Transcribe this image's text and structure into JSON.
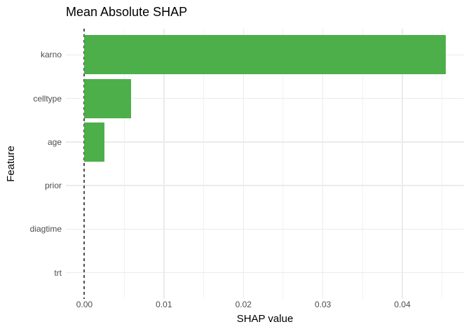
{
  "chart_data": {
    "type": "bar",
    "orientation": "horizontal",
    "title": "Mean Absolute SHAP",
    "xlabel": "SHAP value",
    "ylabel": "Feature",
    "categories": [
      "karno",
      "celltype",
      "age",
      "prior",
      "diagtime",
      "trt"
    ],
    "values": [
      0.0455,
      0.0059,
      0.0025,
      0,
      0,
      0
    ],
    "x_ticks": [
      {
        "value": 0.0,
        "label": "0.00"
      },
      {
        "value": 0.01,
        "label": "0.01"
      },
      {
        "value": 0.02,
        "label": "0.02"
      },
      {
        "value": 0.03,
        "label": "0.03"
      },
      {
        "value": 0.04,
        "label": "0.04"
      }
    ],
    "x_minor_ticks": [
      0.005,
      0.015,
      0.025,
      0.035,
      0.045
    ],
    "xlim": [
      -0.00233,
      0.04775
    ],
    "bar_fill_ratio": 0.9,
    "category_expand": 0.6,
    "zero_line": {
      "value": 0,
      "style": "dashed",
      "color": "#4d4d4d"
    },
    "grid": {
      "show_major": true,
      "show_minor": true,
      "major_color": "#ebebeb",
      "minor_color": "#f2f2f2"
    },
    "legend": "none",
    "colors": {
      "bar": "#4daf4a",
      "axis_text": "#4d4d4d",
      "title_text": "#000000",
      "axis_title_text": "#000000",
      "background": "#ffffff"
    }
  }
}
